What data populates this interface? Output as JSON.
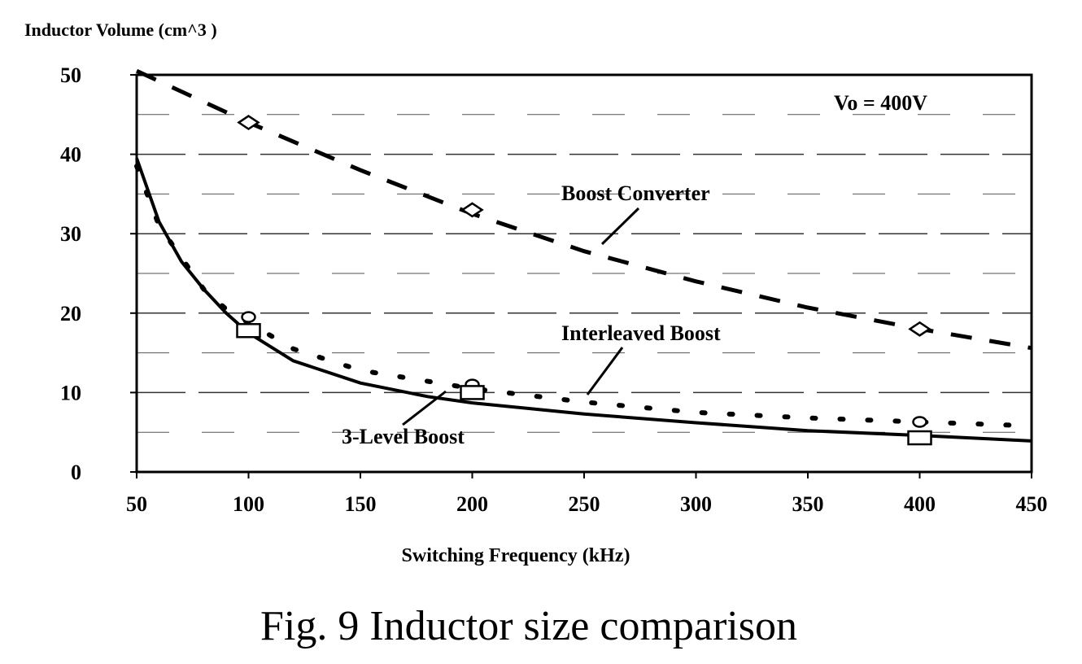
{
  "chart_data": {
    "type": "line",
    "y_title": "Inductor Volume (cm^3  )",
    "xlabel": "Switching Frequency (kHz)",
    "caption": "Fig. 9 Inductor size comparison",
    "condition_label": "Vo = 400V",
    "xlim": [
      50,
      450
    ],
    "ylim": [
      0,
      50
    ],
    "x_ticks": [
      50,
      100,
      150,
      200,
      250,
      300,
      350,
      400,
      450
    ],
    "y_ticks": [
      0,
      10,
      20,
      30,
      40,
      50
    ],
    "grid": "horizontal dashed",
    "series": [
      {
        "name": "Boost Converter",
        "style": "dashed",
        "x": [
          50,
          100,
          150,
          200,
          250,
          300,
          350,
          400,
          450
        ],
        "y": [
          50.5,
          44,
          38,
          32.5,
          27.8,
          24,
          20.7,
          18,
          15.6
        ],
        "markers": {
          "shape": "diamond",
          "x": [
            100,
            200,
            400
          ],
          "y": [
            44,
            33,
            18
          ]
        }
      },
      {
        "name": "Interleaved Boost",
        "style": "dotted",
        "x": [
          50,
          60,
          70,
          80,
          90,
          100,
          120,
          150,
          200,
          250,
          300,
          350,
          400,
          450
        ],
        "y": [
          38.5,
          31,
          27,
          23,
          20.5,
          18.8,
          15.5,
          12.8,
          10.5,
          8.8,
          7.5,
          6.8,
          6.3,
          5.8
        ],
        "markers": {
          "shape": "circle",
          "x": [
            100,
            200,
            400
          ],
          "y": [
            19.5,
            11,
            6.3
          ]
        }
      },
      {
        "name": "3-Level Boost",
        "style": "solid",
        "x": [
          50,
          60,
          70,
          80,
          90,
          100,
          120,
          150,
          180,
          200,
          250,
          300,
          350,
          400,
          450
        ],
        "y": [
          39.5,
          31.5,
          26.5,
          23,
          20,
          17.5,
          14,
          11.2,
          9.5,
          8.7,
          7.3,
          6.2,
          5.2,
          4.6,
          3.9
        ],
        "markers": {
          "shape": "square",
          "x": [
            100,
            200,
            400
          ],
          "y": [
            17.8,
            10,
            4.3
          ]
        }
      }
    ]
  }
}
